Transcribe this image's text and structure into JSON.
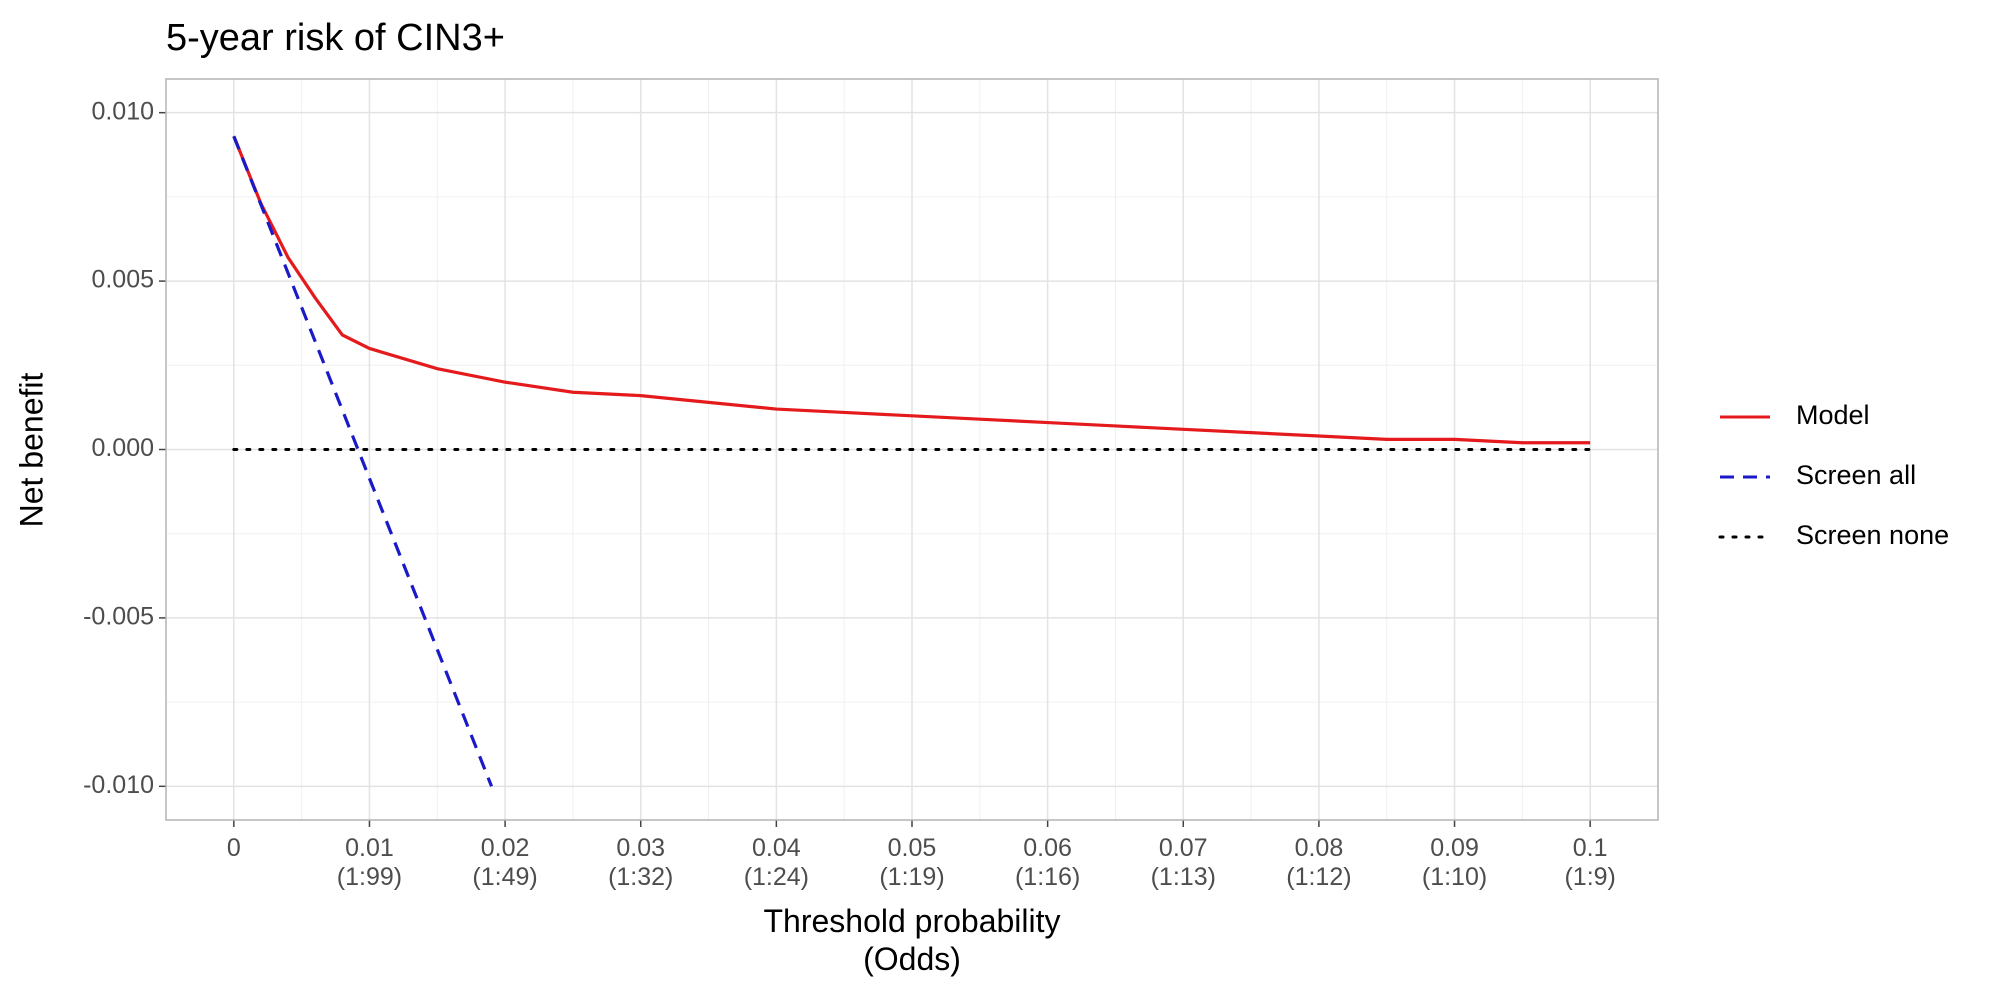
{
  "chart_data": {
    "type": "line",
    "title": "5-year risk of CIN3+",
    "x_label": "Threshold probability\n(Odds)",
    "y_label": "Net benefit",
    "xlim": [
      -0.005,
      0.105
    ],
    "ylim": [
      -0.011,
      0.011
    ],
    "xticks": [
      0,
      {
        "value": 0.01,
        "label": "0.01\n(1:99)"
      },
      {
        "value": 0.02,
        "label": "0.02\n(1:49)"
      },
      {
        "value": 0.03,
        "label": "0.03\n(1:32)"
      },
      {
        "value": 0.04,
        "label": "0.04\n(1:24)"
      },
      {
        "value": 0.05,
        "label": "0.05\n(1:19)"
      },
      {
        "value": 0.06,
        "label": "0.06\n(1:16)"
      },
      {
        "value": 0.07,
        "label": "0.07\n(1:13)"
      },
      {
        "value": 0.08,
        "label": "0.08\n(1:12)"
      },
      {
        "value": 0.09,
        "label": "0.09\n(1:10)"
      },
      {
        "value": 0.1,
        "label": "0.1\n(1:9)"
      }
    ],
    "yticks": [
      {
        "value": -0.01,
        "label": "-0.010"
      },
      {
        "value": -0.005,
        "label": "-0.005"
      },
      {
        "value": 0,
        "label": "0.000"
      },
      {
        "value": 0.005,
        "label": "0.005"
      },
      {
        "value": 0.01,
        "label": "0.010"
      }
    ],
    "x_minor_ticks": [
      0.005,
      0.015,
      0.025,
      0.035,
      0.045,
      0.055,
      0.065,
      0.075,
      0.085,
      0.095
    ],
    "y_minor_ticks": [
      -0.0075,
      -0.0025,
      0.0025,
      0.0075
    ],
    "grid": true,
    "legend_position": "right",
    "series": [
      {
        "name": "Model",
        "color": "#e41a1c",
        "linestyle": "solid",
        "x": [
          0,
          0.002,
          0.004,
          0.006,
          0.008,
          0.01,
          0.015,
          0.02,
          0.025,
          0.03,
          0.035,
          0.04,
          0.045,
          0.05,
          0.055,
          0.06,
          0.065,
          0.07,
          0.075,
          0.08,
          0.085,
          0.09,
          0.095,
          0.1
        ],
        "values": [
          0.0093,
          0.0073,
          0.0057,
          0.0045,
          0.0034,
          0.003,
          0.0024,
          0.002,
          0.0017,
          0.0016,
          0.0014,
          0.0012,
          0.0011,
          0.001,
          0.0009,
          0.0008,
          0.0007,
          0.0006,
          0.0005,
          0.0004,
          0.0003,
          0.0003,
          0.0002,
          0.0002
        ]
      },
      {
        "name": "Screen all",
        "color": "#1a1ac8",
        "linestyle": "dashed",
        "x": [
          0,
          0.019
        ],
        "values": [
          0.0093,
          -0.01
        ]
      },
      {
        "name": "Screen none",
        "color": "#000000",
        "linestyle": "dotted",
        "x": [
          0,
          0.1
        ],
        "values": [
          0,
          0
        ]
      }
    ]
  }
}
